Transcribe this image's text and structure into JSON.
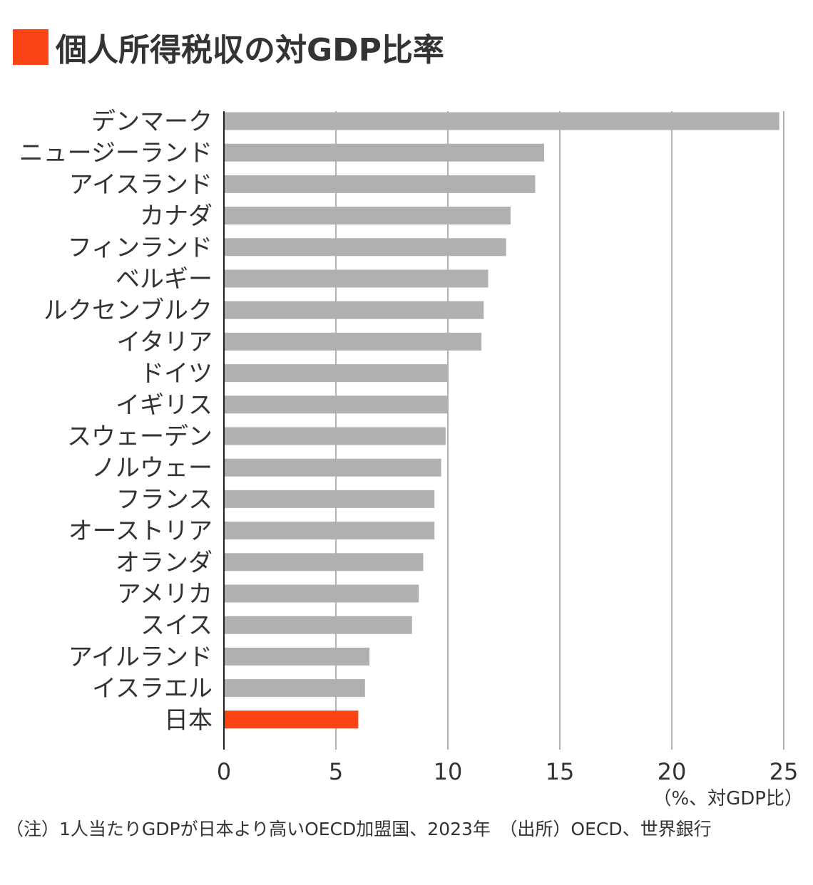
{
  "title": "個人所得税収の対GDP比率",
  "accent_color": "#fc4515",
  "bar_color": "#b0b0b0",
  "unit_label": "（%、対GDP比）",
  "footnote": "（注）1人当たりGDPが日本より高いOECD加盟国、2023年　（出所）OECD、世界銀行",
  "chart_data": {
    "type": "bar",
    "orientation": "horizontal",
    "title": "個人所得税収の対GDP比率",
    "xlim": [
      0,
      25
    ],
    "xticks": [
      "0",
      "5",
      "10",
      "15",
      "20",
      "25"
    ],
    "grid": "vertical",
    "categories": [
      "デンマーク",
      "ニュージーランド",
      "アイスランド",
      "カナダ",
      "フィンランド",
      "ベルギー",
      "ルクセンブルク",
      "イタリア",
      "ドイツ",
      "イギリス",
      "スウェーデン",
      "ノルウェー",
      "フランス",
      "オーストリア",
      "オランダ",
      "アメリカ",
      "スイス",
      "アイルランド",
      "イスラエル",
      "日本"
    ],
    "values": [
      24.8,
      14.3,
      13.9,
      12.8,
      12.6,
      11.8,
      11.6,
      11.5,
      10.0,
      10.0,
      9.9,
      9.7,
      9.4,
      9.4,
      8.9,
      8.7,
      8.4,
      6.5,
      6.3,
      6.0
    ],
    "highlight": "日本"
  }
}
